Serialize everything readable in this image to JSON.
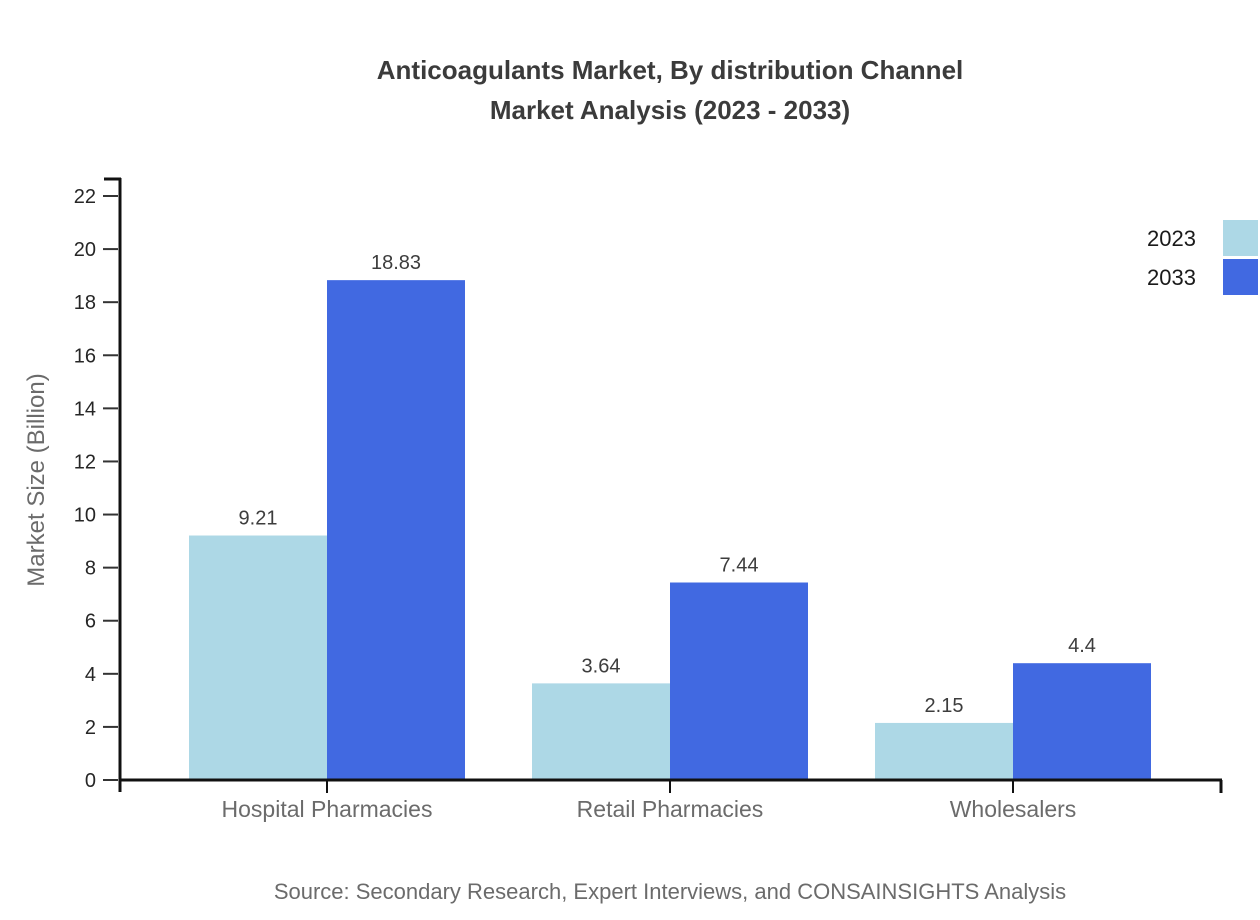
{
  "title": {
    "line1": "Anticoagulants Market, By distribution Channel",
    "line2": "Market Analysis (2023 - 2033)"
  },
  "source": "Source: Secondary Research, Expert Interviews, and CONSAINSIGHTS Analysis",
  "chart_data": {
    "type": "bar",
    "categories": [
      "Hospital Pharmacies",
      "Retail Pharmacies",
      "Wholesalers"
    ],
    "series": [
      {
        "name": "2023",
        "color": "#ADD8E6",
        "values": [
          9.21,
          3.64,
          2.15
        ]
      },
      {
        "name": "2033",
        "color": "#4169E1",
        "values": [
          18.83,
          7.44,
          4.4
        ]
      }
    ],
    "value_labels": [
      [
        "9.21",
        "3.64",
        "2.15"
      ],
      [
        "18.83",
        "7.44",
        "4.4"
      ]
    ],
    "title": "Anticoagulants Market, By distribution Channel Market Analysis (2023 - 2033)",
    "xlabel": "",
    "ylabel": "Market Size (Billion)",
    "ylim": [
      0,
      22
    ],
    "ytick_step": 2,
    "ytick_labels": [
      "0",
      "2",
      "4",
      "6",
      "8",
      "10",
      "12",
      "14",
      "16",
      "18",
      "20",
      "22"
    ],
    "grid": false,
    "legend_position": "top-right",
    "legend_entries": [
      "2023",
      "2033"
    ]
  }
}
